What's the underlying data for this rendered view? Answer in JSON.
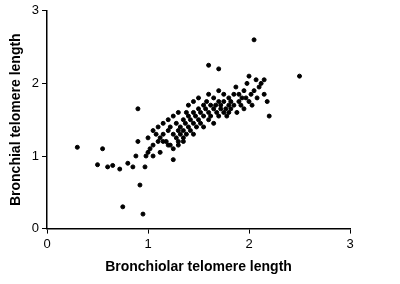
{
  "chart_data": {
    "type": "scatter",
    "x_label": "Bronchiolar telomere length",
    "y_label": "Bronchial telomere length",
    "color": "#000000",
    "marker": "circle",
    "grid": false,
    "xlim": [
      0,
      3
    ],
    "xticks": [
      0,
      1,
      2,
      3
    ],
    "ylim": [
      0,
      3
    ],
    "yticks": [
      0,
      1,
      2,
      3
    ],
    "x": [
      0.3,
      0.5,
      0.55,
      0.6,
      0.65,
      0.72,
      0.75,
      0.8,
      0.85,
      0.9,
      0.9,
      0.92,
      0.95,
      0.97,
      0.98,
      1.0,
      1.02,
      1.05,
      1.05,
      1.08,
      1.1,
      1.1,
      1.12,
      1.12,
      1.15,
      1.15,
      1.18,
      1.2,
      1.2,
      1.22,
      1.22,
      1.25,
      1.25,
      1.25,
      1.28,
      1.28,
      1.3,
      1.3,
      1.3,
      1.32,
      1.32,
      1.35,
      1.35,
      1.35,
      1.37,
      1.38,
      1.38,
      1.4,
      1.4,
      1.4,
      1.42,
      1.42,
      1.45,
      1.45,
      1.45,
      1.47,
      1.48,
      1.5,
      1.5,
      1.5,
      1.52,
      1.52,
      1.55,
      1.55,
      1.55,
      1.57,
      1.58,
      1.6,
      1.6,
      1.6,
      1.62,
      1.62,
      1.65,
      1.65,
      1.65,
      1.67,
      1.68,
      1.7,
      1.7,
      1.7,
      1.72,
      1.72,
      1.75,
      1.75,
      1.75,
      1.77,
      1.78,
      1.8,
      1.8,
      1.8,
      1.82,
      1.82,
      1.85,
      1.85,
      1.87,
      1.88,
      1.9,
      1.9,
      1.92,
      1.93,
      1.95,
      1.95,
      1.97,
      1.98,
      2.0,
      2.0,
      2.02,
      2.03,
      2.05,
      2.05,
      2.07,
      2.08,
      2.1,
      2.12,
      2.15,
      2.15,
      2.18,
      2.2,
      2.5,
      1.6,
      1.7,
      1.0,
      1.15,
      1.25,
      1.3,
      1.45,
      1.05,
      0.88,
      1.2,
      1.35
    ],
    "y": [
      1.12,
      0.88,
      1.1,
      0.85,
      0.87,
      0.82,
      0.3,
      0.9,
      0.85,
      1.2,
      1.65,
      0.6,
      0.2,
      0.85,
      1.0,
      1.25,
      1.1,
      1.35,
      1.15,
      1.3,
      1.2,
      1.4,
      1.05,
      1.25,
      1.45,
      1.3,
      1.2,
      1.5,
      1.35,
      1.15,
      1.4,
      0.95,
      1.3,
      1.55,
      1.25,
      1.45,
      1.35,
      1.6,
      1.2,
      1.4,
      1.3,
      1.5,
      1.25,
      1.35,
      1.45,
      1.6,
      1.3,
      1.4,
      1.55,
      1.7,
      1.5,
      1.35,
      1.6,
      1.45,
      1.75,
      1.55,
      1.4,
      1.65,
      1.5,
      1.8,
      1.45,
      1.6,
      1.7,
      1.55,
      1.4,
      1.65,
      1.75,
      1.6,
      1.85,
      1.5,
      1.7,
      1.55,
      1.65,
      1.8,
      1.45,
      1.7,
      1.6,
      1.75,
      1.55,
      1.9,
      1.65,
      1.7,
      1.6,
      1.75,
      1.85,
      1.65,
      1.55,
      1.7,
      1.8,
      1.6,
      1.75,
      1.65,
      1.85,
      1.7,
      1.95,
      1.6,
      1.75,
      1.85,
      1.7,
      1.8,
      1.9,
      1.65,
      1.8,
      2.0,
      1.75,
      2.1,
      1.85,
      1.7,
      2.6,
      1.9,
      2.05,
      1.8,
      1.95,
      2.0,
      1.85,
      2.05,
      1.75,
      1.55,
      2.1,
      2.25,
      2.2,
      1.05,
      1.2,
      1.1,
      1.15,
      1.3,
      1.0,
      1.0,
      1.15,
      1.2
    ]
  }
}
